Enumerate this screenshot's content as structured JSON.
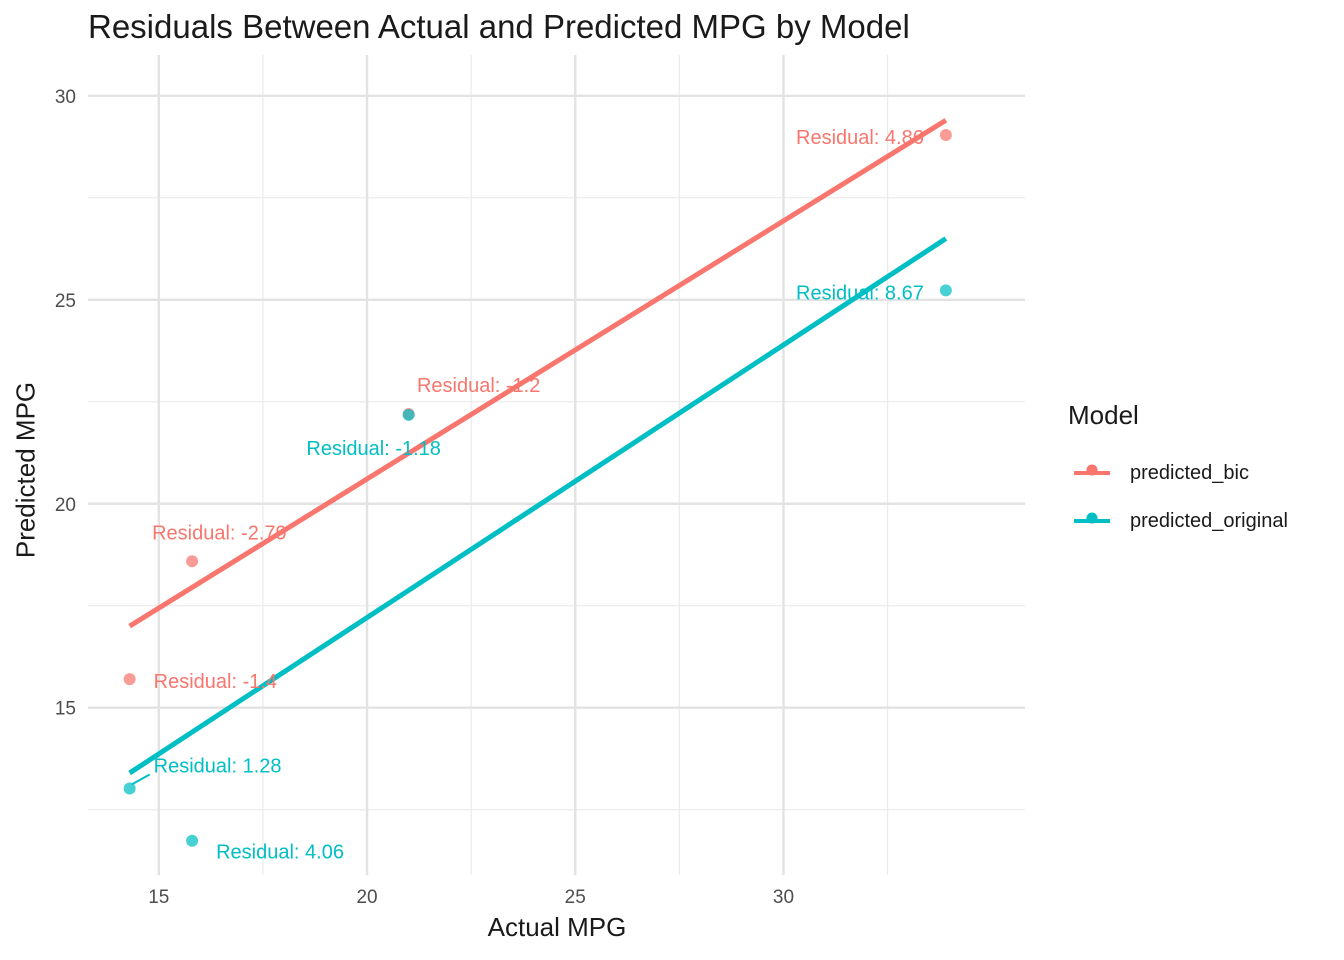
{
  "chart_data": {
    "type": "scatter",
    "title": "Residuals Between Actual and Predicted MPG by Model",
    "xlabel": "Actual MPG",
    "ylabel": "Predicted MPG",
    "xlim": [
      13.3,
      35.8
    ],
    "ylim": [
      10.9,
      31.0
    ],
    "x_ticks": [
      15,
      20,
      25,
      30
    ],
    "y_ticks": [
      15,
      20,
      25,
      30
    ],
    "grid": true,
    "legend": {
      "title": "Model",
      "position": "right"
    },
    "series": [
      {
        "name": "predicted_bic",
        "color": "#F8766D",
        "points": [
          {
            "x": 14.3,
            "y": 15.7,
            "label": "Residual: -1.4"
          },
          {
            "x": 15.8,
            "y": 18.59,
            "label": "Residual: -2.79"
          },
          {
            "x": 21.0,
            "y": 22.2,
            "label": "Residual: -1.2"
          },
          {
            "x": 33.9,
            "y": 29.04,
            "label": "Residual: 4.86"
          }
        ],
        "fit": {
          "x": [
            14.3,
            33.9
          ],
          "y": [
            17.0,
            29.4
          ]
        }
      },
      {
        "name": "predicted_original",
        "color": "#00BFC4",
        "points": [
          {
            "x": 14.3,
            "y": 13.02,
            "label": "Residual: 1.28"
          },
          {
            "x": 15.8,
            "y": 11.74,
            "label": "Residual: 4.06"
          },
          {
            "x": 21.0,
            "y": 22.18,
            "label": "Residual: -1.18"
          },
          {
            "x": 33.9,
            "y": 25.23,
            "label": "Residual: 8.67"
          }
        ],
        "fit": {
          "x": [
            14.3,
            33.9
          ],
          "y": [
            13.4,
            26.5
          ]
        }
      }
    ]
  }
}
